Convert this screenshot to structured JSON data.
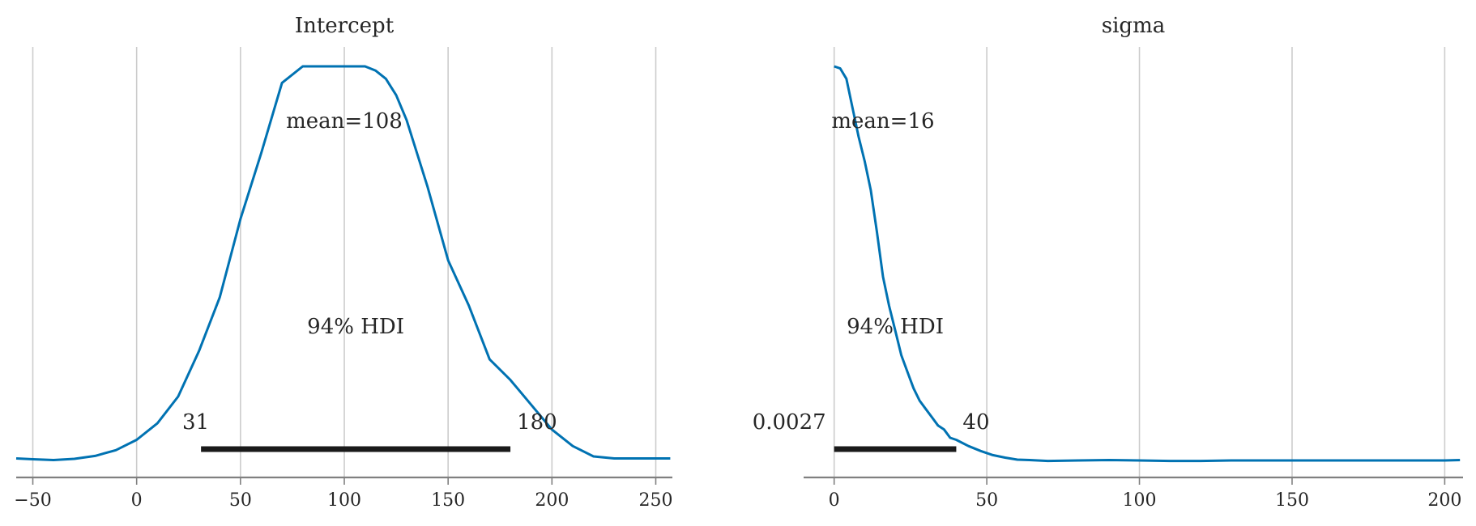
{
  "chart_data": [
    {
      "type": "line",
      "title": "Intercept",
      "xlim": [
        -58,
        258
      ],
      "ylim": [
        0,
        1
      ],
      "xticks": [
        -50,
        0,
        50,
        100,
        150,
        200,
        250
      ],
      "xtick_labels": [
        "−50",
        "0",
        "50",
        "100",
        "150",
        "200",
        "250"
      ],
      "grid": "vertical",
      "mean_label": "mean=108",
      "hdi_label": "94% HDI",
      "hdi_low_label": "31",
      "hdi_high_label": "180",
      "hdi": [
        31,
        180
      ],
      "density": {
        "x": [
          -58,
          -50,
          -40,
          -30,
          -20,
          -10,
          0,
          10,
          20,
          30,
          40,
          50,
          60,
          70,
          80,
          90,
          95,
          100,
          105,
          110,
          115,
          120,
          125,
          130,
          140,
          150,
          160,
          170,
          180,
          190,
          200,
          210,
          220,
          230,
          240,
          250,
          257
        ],
        "y": [
          0.05,
          0.048,
          0.046,
          0.049,
          0.056,
          0.07,
          0.095,
          0.135,
          0.2,
          0.31,
          0.44,
          0.63,
          0.79,
          0.96,
          1.0,
          1.0,
          1.0,
          1.0,
          1.0,
          1.0,
          0.99,
          0.97,
          0.93,
          0.87,
          0.71,
          0.53,
          0.42,
          0.29,
          0.24,
          0.18,
          0.12,
          0.08,
          0.055,
          0.05,
          0.05,
          0.05,
          0.05
        ]
      }
    },
    {
      "type": "line",
      "title": "sigma",
      "xlim": [
        -10,
        206
      ],
      "ylim": [
        0,
        1
      ],
      "xticks": [
        0,
        50,
        100,
        150,
        200
      ],
      "xtick_labels": [
        "0",
        "50",
        "100",
        "150",
        "200"
      ],
      "grid": "vertical",
      "mean_label": "mean=16",
      "hdi_label": "94% HDI",
      "hdi_low_label": "0.0027",
      "hdi_high_label": "40",
      "hdi": [
        0.0027,
        40
      ],
      "density": {
        "x": [
          0,
          2,
          4,
          6,
          8,
          10,
          12,
          14,
          16,
          18,
          20,
          22,
          24,
          26,
          28,
          30,
          32,
          34,
          36,
          38,
          40,
          44,
          48,
          52,
          56,
          60,
          64,
          70,
          80,
          90,
          100,
          110,
          120,
          130,
          140,
          150,
          160,
          170,
          180,
          190,
          200,
          205
        ],
        "y": [
          1.0,
          0.995,
          0.97,
          0.9,
          0.83,
          0.77,
          0.7,
          0.6,
          0.49,
          0.42,
          0.36,
          0.3,
          0.26,
          0.22,
          0.19,
          0.17,
          0.15,
          0.13,
          0.12,
          0.1,
          0.095,
          0.08,
          0.068,
          0.058,
          0.052,
          0.047,
          0.046,
          0.044,
          0.045,
          0.046,
          0.045,
          0.044,
          0.044,
          0.045,
          0.045,
          0.045,
          0.045,
          0.045,
          0.045,
          0.045,
          0.045,
          0.046
        ]
      }
    }
  ]
}
